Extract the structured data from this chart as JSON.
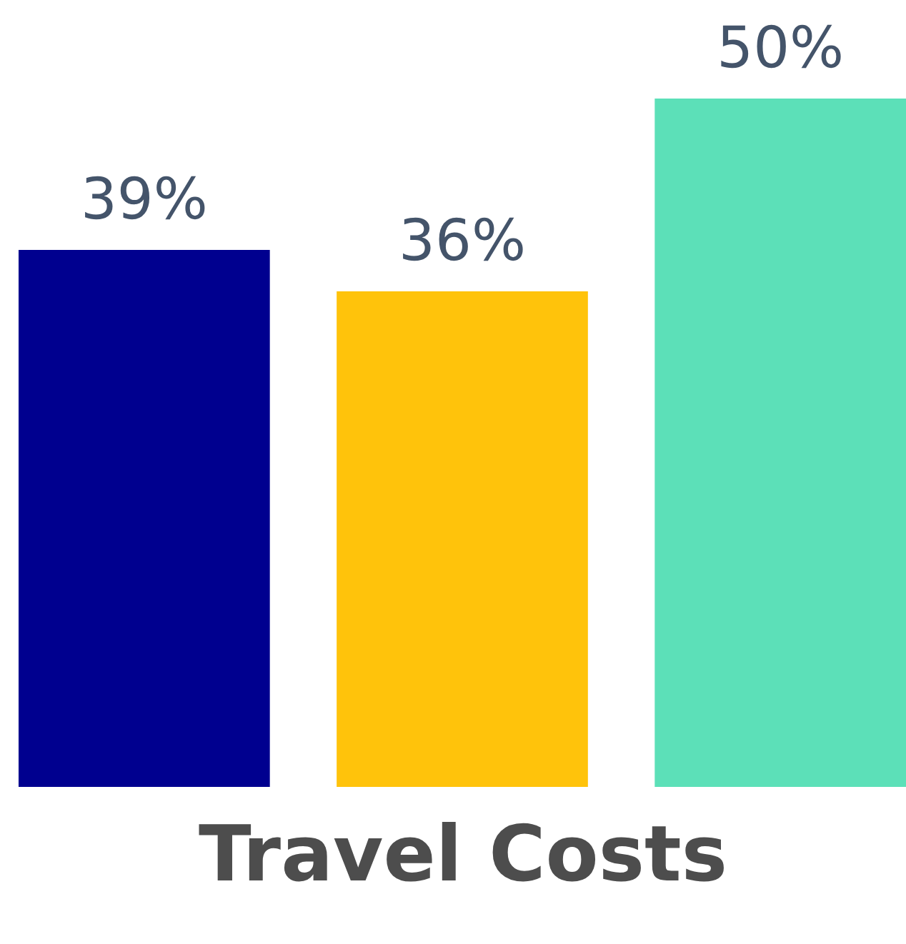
{
  "chart_data": {
    "type": "bar",
    "xlabel": "Travel Costs",
    "categories": [
      null,
      null,
      null
    ],
    "values": [
      39,
      36,
      50
    ],
    "colors": [
      "#00008f",
      "#ffc30b",
      "#5ce0b8"
    ],
    "value_labels": [
      "39%",
      "36%",
      "50%"
    ]
  }
}
